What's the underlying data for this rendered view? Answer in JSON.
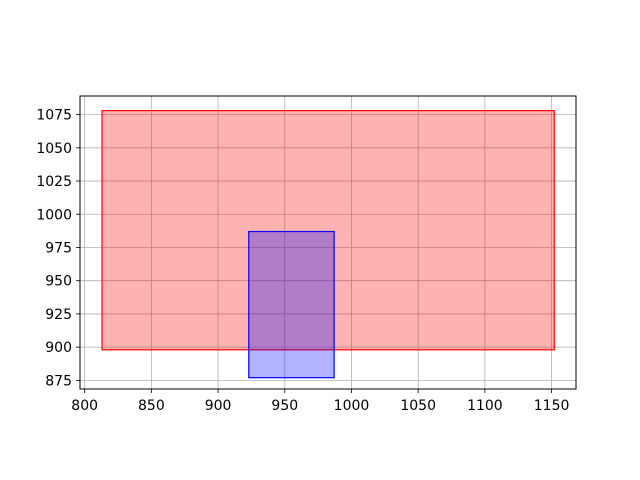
{
  "chart_data": {
    "type": "rectangles",
    "xlim": [
      796.5,
      1168.3
    ],
    "ylim": [
      868.5,
      1089.0
    ],
    "grid": true,
    "x_ticks": [
      800,
      850,
      900,
      950,
      1000,
      1050,
      1100,
      1150
    ],
    "y_ticks": [
      875,
      900,
      925,
      950,
      975,
      1000,
      1025,
      1050,
      1075
    ],
    "x_tick_labels": [
      "800",
      "850",
      "900",
      "950",
      "1000",
      "1050",
      "1100",
      "1150"
    ],
    "y_tick_labels": [
      "875",
      "900",
      "925",
      "950",
      "975",
      "1000",
      "1025",
      "1050",
      "1075"
    ],
    "rectangles": [
      {
        "x0": 813,
        "x1": 1152,
        "y0": 898,
        "y1": 1078,
        "fill": "#ff0000",
        "fill_opacity": 0.3,
        "stroke": "#ff0000"
      },
      {
        "x0": 923,
        "x1": 987,
        "y0": 877,
        "y1": 987,
        "fill": "#0000ff",
        "fill_opacity": 0.3,
        "stroke": "#0000ff"
      }
    ]
  }
}
